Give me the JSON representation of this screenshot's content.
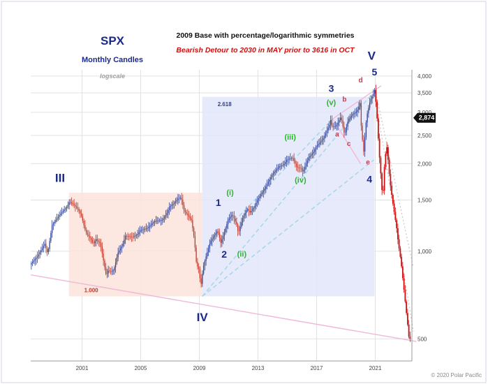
{
  "chart_data": {
    "type": "candlestick-line",
    "title": "SPX",
    "subtitle": "Monthly Candles",
    "headline": "2009 Base with percentage/logarithmic symmetries",
    "subheadline": "Bearish Detour to 2030 in MAY prior to 3616 in OCT",
    "scale_note": "logscale",
    "copyright": "© 2020 Polar Pacific",
    "x_ticks": [
      "2001",
      "2005",
      "2009",
      "2013",
      "2017",
      "2021"
    ],
    "x_range": [
      1997.5,
      2023.5
    ],
    "y_ticks": [
      "4,000",
      "3,500",
      "3,000",
      "2,500",
      "2,000",
      "1,500",
      "1,000",
      "500"
    ],
    "y_tick_values": [
      4000,
      3500,
      3000,
      2500,
      2000,
      1500,
      1000,
      500
    ],
    "y_range": [
      420,
      4200
    ],
    "y_scale": "log",
    "last_price_label": "2,874",
    "last_price": 2874,
    "grid": true,
    "colors": {
      "up": "#2e3f8f",
      "down": "#c0392b",
      "projection": "#d01010",
      "box_pink": "#fbe3dc",
      "box_blue": "#e3e6fa",
      "trend_pink": "#f0b8d8",
      "trend_blue": "#a8d8e8",
      "wave_navy": "#1b2a8a",
      "wave_green": "#2bb52b",
      "wave_red": "#c04050"
    },
    "boxes": [
      {
        "label": "1.000",
        "x0": 2000.1,
        "x1": 2009.2,
        "y0": 700,
        "y1": 1590,
        "fill": "pink"
      },
      {
        "label": "2.618",
        "x0": 2009.2,
        "x1": 2020.95,
        "y0": 700,
        "y1": 3390,
        "fill": "blue"
      }
    ],
    "price_series": [
      [
        1997.5,
        900
      ],
      [
        1998.0,
        960
      ],
      [
        1998.5,
        1060
      ],
      [
        1998.7,
        980
      ],
      [
        1999.0,
        1230
      ],
      [
        1999.5,
        1330
      ],
      [
        2000.0,
        1420
      ],
      [
        2000.2,
        1480
      ],
      [
        2000.5,
        1440
      ],
      [
        2000.8,
        1390
      ],
      [
        2001.0,
        1320
      ],
      [
        2001.3,
        1160
      ],
      [
        2001.6,
        1110
      ],
      [
        2001.8,
        1060
      ],
      [
        2002.0,
        1100
      ],
      [
        2002.3,
        1060
      ],
      [
        2002.5,
        930
      ],
      [
        2002.7,
        820
      ],
      [
        2002.8,
        860
      ],
      [
        2003.0,
        850
      ],
      [
        2003.2,
        860
      ],
      [
        2003.5,
        990
      ],
      [
        2003.8,
        1050
      ],
      [
        2004.0,
        1130
      ],
      [
        2004.5,
        1120
      ],
      [
        2004.8,
        1140
      ],
      [
        2005.0,
        1180
      ],
      [
        2005.5,
        1200
      ],
      [
        2006.0,
        1270
      ],
      [
        2006.5,
        1280
      ],
      [
        2006.8,
        1340
      ],
      [
        2007.0,
        1420
      ],
      [
        2007.3,
        1460
      ],
      [
        2007.6,
        1520
      ],
      [
        2007.8,
        1530
      ],
      [
        2008.0,
        1380
      ],
      [
        2008.3,
        1320
      ],
      [
        2008.5,
        1280
      ],
      [
        2008.7,
        1100
      ],
      [
        2008.85,
        900
      ],
      [
        2009.0,
        870
      ],
      [
        2009.15,
        760
      ],
      [
        2009.3,
        880
      ],
      [
        2009.5,
        960
      ],
      [
        2009.8,
        1080
      ],
      [
        2010.0,
        1120
      ],
      [
        2010.3,
        1180
      ],
      [
        2010.5,
        1070
      ],
      [
        2010.7,
        1140
      ],
      [
        2011.0,
        1280
      ],
      [
        2011.3,
        1340
      ],
      [
        2011.6,
        1230
      ],
      [
        2011.7,
        1150
      ],
      [
        2012.0,
        1300
      ],
      [
        2012.3,
        1400
      ],
      [
        2012.5,
        1360
      ],
      [
        2012.8,
        1420
      ],
      [
        2013.0,
        1500
      ],
      [
        2013.5,
        1640
      ],
      [
        2014.0,
        1830
      ],
      [
        2014.5,
        1960
      ],
      [
        2014.8,
        1980
      ],
      [
        2015.0,
        2060
      ],
      [
        2015.4,
        2100
      ],
      [
        2015.7,
        1940
      ],
      [
        2016.0,
        1930
      ],
      [
        2016.1,
        1870
      ],
      [
        2016.5,
        2100
      ],
      [
        2016.8,
        2180
      ],
      [
        2017.0,
        2280
      ],
      [
        2017.5,
        2440
      ],
      [
        2017.9,
        2700
      ],
      [
        2018.0,
        2820
      ],
      [
        2018.1,
        2670
      ],
      [
        2018.4,
        2700
      ],
      [
        2018.7,
        2900
      ],
      [
        2018.95,
        2510
      ],
      [
        2019.2,
        2830
      ],
      [
        2019.5,
        2960
      ],
      [
        2019.8,
        3030
      ],
      [
        2020.0,
        3230
      ],
      [
        2020.1,
        2600
      ],
      [
        2020.25,
        2200
      ],
      [
        2020.45,
        2900
      ],
      [
        2020.7,
        3300
      ],
      [
        2020.9,
        3460
      ],
      [
        2021.0,
        3580
      ]
    ],
    "projection_series": [
      [
        2021.0,
        3580
      ],
      [
        2021.1,
        3200
      ],
      [
        2021.2,
        2700
      ],
      [
        2021.3,
        2200
      ],
      [
        2021.4,
        1900
      ],
      [
        2021.55,
        1500
      ],
      [
        2021.7,
        2100
      ],
      [
        2021.85,
        2300
      ],
      [
        2021.95,
        1950
      ],
      [
        2022.1,
        1650
      ],
      [
        2022.3,
        1400
      ],
      [
        2022.5,
        1200
      ],
      [
        2022.6,
        1080
      ],
      [
        2022.8,
        920
      ],
      [
        2022.95,
        780
      ],
      [
        2023.1,
        660
      ],
      [
        2023.25,
        560
      ],
      [
        2023.35,
        500
      ]
    ],
    "trendlines": [
      {
        "style": "pink",
        "points": [
          [
            1997.5,
            830
          ],
          [
            2023.8,
            490
          ]
        ]
      },
      {
        "style": "pink",
        "points": [
          [
            2018.1,
            2850
          ],
          [
            2021.4,
            3700
          ]
        ]
      },
      {
        "style": "pink",
        "points": [
          [
            2018.1,
            2850
          ],
          [
            2020.0,
            2000
          ]
        ]
      },
      {
        "style": "blue-dash",
        "points": [
          [
            2009.2,
            700
          ],
          [
            2021.0,
            3580
          ]
        ]
      },
      {
        "style": "blue-dash",
        "points": [
          [
            2011.4,
            1270
          ],
          [
            2018.1,
            2850
          ]
        ]
      },
      {
        "style": "blue-dash",
        "points": [
          [
            2009.2,
            700
          ],
          [
            2020.9,
            2060
          ]
        ]
      },
      {
        "style": "grey-dot",
        "points": [
          [
            2021.0,
            3580
          ],
          [
            2023.6,
            880
          ]
        ]
      },
      {
        "style": "grey-dot",
        "points": [
          [
            2021.0,
            3400
          ],
          [
            2023.6,
            530
          ]
        ]
      }
    ],
    "wave_labels": [
      {
        "text": "III",
        "x": 1999.5,
        "y": 1730,
        "color": "navy",
        "size": 17
      },
      {
        "text": "IV",
        "x": 2009.2,
        "y": 575,
        "color": "navy",
        "size": 17
      },
      {
        "text": "V",
        "x": 2020.75,
        "y": 4550,
        "color": "navy",
        "size": 17
      },
      {
        "text": "1",
        "x": 2010.3,
        "y": 1430,
        "color": "navy",
        "size": 14
      },
      {
        "text": "2",
        "x": 2010.7,
        "y": 950,
        "color": "navy",
        "size": 14
      },
      {
        "text": "3",
        "x": 2018.0,
        "y": 3530,
        "color": "navy",
        "size": 14
      },
      {
        "text": "4",
        "x": 2020.6,
        "y": 1720,
        "color": "navy",
        "size": 14
      },
      {
        "text": "5",
        "x": 2020.95,
        "y": 4020,
        "color": "navy",
        "size": 14
      },
      {
        "text": "(i)",
        "x": 2011.1,
        "y": 1560,
        "color": "green",
        "size": 11
      },
      {
        "text": "(ii)",
        "x": 2011.9,
        "y": 960,
        "color": "green",
        "size": 11
      },
      {
        "text": "(iii)",
        "x": 2015.2,
        "y": 2420,
        "color": "green",
        "size": 11
      },
      {
        "text": "(iv)",
        "x": 2015.9,
        "y": 1720,
        "color": "green",
        "size": 11
      },
      {
        "text": "(v)",
        "x": 2018.0,
        "y": 3180,
        "color": "green",
        "size": 11
      },
      {
        "text": "a",
        "x": 2018.4,
        "y": 2480,
        "color": "red",
        "size": 10
      },
      {
        "text": "b",
        "x": 2018.9,
        "y": 3270,
        "color": "red",
        "size": 10
      },
      {
        "text": "c",
        "x": 2019.2,
        "y": 2300,
        "color": "red",
        "size": 10
      },
      {
        "text": "d",
        "x": 2020.0,
        "y": 3800,
        "color": "red",
        "size": 10
      },
      {
        "text": "e",
        "x": 2020.5,
        "y": 1990,
        "color": "red",
        "size": 10
      }
    ]
  }
}
